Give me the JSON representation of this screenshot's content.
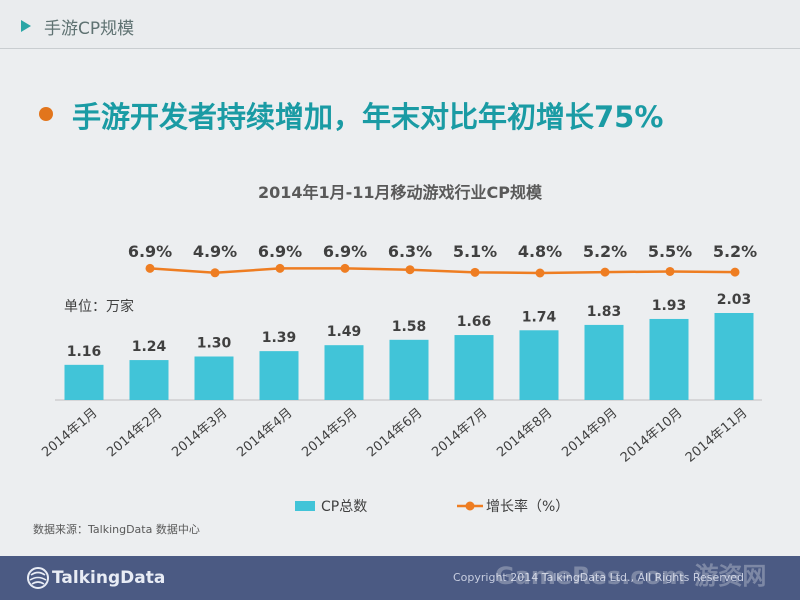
{
  "header": {
    "title": "手游CP规模"
  },
  "headline": "手游开发者持续增加，年末对比年初增长75%",
  "unit_label": "单位：万家",
  "chart_data": {
    "type": "bar",
    "title": "2014年1月-11月移动游戏行业CP规模",
    "categories": [
      "2014年1月",
      "2014年2月",
      "2014年3月",
      "2014年4月",
      "2014年5月",
      "2014年6月",
      "2014年7月",
      "2014年8月",
      "2014年9月",
      "2014年10月",
      "2014年11月"
    ],
    "series": [
      {
        "name": "CP总数",
        "type": "bar",
        "color": "#41c4d8",
        "values": [
          1.16,
          1.24,
          1.3,
          1.39,
          1.49,
          1.58,
          1.66,
          1.74,
          1.83,
          1.93,
          2.03
        ]
      },
      {
        "name": "增长率（%）",
        "type": "line",
        "color": "#ee7d22",
        "values": [
          null,
          6.9,
          4.9,
          6.9,
          6.9,
          6.3,
          5.1,
          4.8,
          5.2,
          5.5,
          5.2
        ]
      }
    ],
    "legend": "bottom"
  },
  "source": "数据来源：TalkingData 数据中心",
  "footer": {
    "logo": "TalkingData",
    "copyright": "Copyright 2014 TalkingData Ltd., All Rights Reserved",
    "watermark": "GameRes.com 游资网"
  }
}
